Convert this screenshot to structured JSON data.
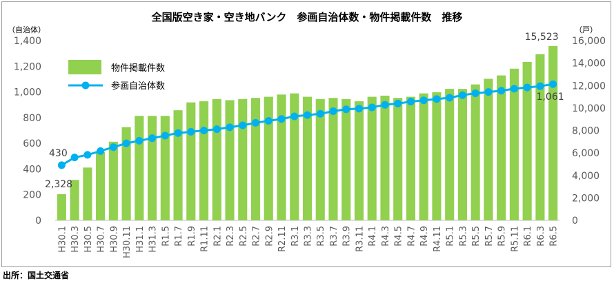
{
  "source": "出所：国土交通省",
  "chart_data": {
    "type": "bar+line",
    "title": "全国版空き家・空き地バンク　参画自治体数・物件掲載件数　推移",
    "left_axis_unit": "（自治体）",
    "right_axis_unit": "（戸）",
    "left_ylim": [
      0,
      1400
    ],
    "left_ticks": [
      0,
      200,
      400,
      600,
      800,
      1000,
      1200,
      1400
    ],
    "right_ylim": [
      0,
      16000
    ],
    "right_ticks": [
      0,
      2000,
      4000,
      6000,
      8000,
      10000,
      12000,
      14000,
      16000
    ],
    "right_tick_labels": [
      "0",
      "2,000",
      "4,000",
      "6,000",
      "8,000",
      "10,000",
      "12,000",
      "14,000",
      "16,000"
    ],
    "grid": false,
    "legend_position": "top-left",
    "categories": [
      "H30.1",
      "H30.3",
      "H30.5",
      "H30.7",
      "H30.9",
      "H30.11",
      "H31.1",
      "H31.3",
      "R1.5",
      "R1.7",
      "R1.9",
      "R1.11",
      "R2.1",
      "R2.3",
      "R2.5",
      "R2.7",
      "R2.9",
      "R2.11",
      "R3.1",
      "R3.3",
      "R3.5",
      "R3.7",
      "R3.9",
      "R3.11",
      "R4.1",
      "R4.3",
      "R4.5",
      "R4.7",
      "R4.9",
      "R4.11",
      "R5.1",
      "R5.3",
      "R5.5",
      "R5.7",
      "R5.9",
      "R5.11",
      "R6.1",
      "R6.3",
      "R6.5"
    ],
    "series": [
      {
        "name": "物件掲載件数",
        "type": "bar",
        "axis": "right",
        "color": "#92d050",
        "values": [
          2328,
          3600,
          4700,
          6100,
          7000,
          8300,
          9300,
          9300,
          9300,
          9800,
          10500,
          10600,
          10800,
          10700,
          10800,
          10900,
          11000,
          11200,
          11300,
          11000,
          10800,
          10900,
          10800,
          10600,
          11000,
          11100,
          10900,
          11000,
          11300,
          11400,
          11700,
          11700,
          12100,
          12600,
          12900,
          13500,
          14100,
          14800,
          15523
        ]
      },
      {
        "name": "参画自治体数",
        "type": "line",
        "axis": "left",
        "color": "#00b0f0",
        "values": [
          430,
          490,
          510,
          540,
          570,
          600,
          620,
          640,
          660,
          680,
          690,
          700,
          710,
          725,
          740,
          760,
          775,
          790,
          810,
          820,
          830,
          850,
          865,
          870,
          880,
          900,
          910,
          925,
          935,
          945,
          955,
          975,
          990,
          1000,
          1010,
          1025,
          1035,
          1045,
          1061
        ]
      }
    ],
    "annotations": {
      "line_first": "430",
      "bar_first": "2,328",
      "bar_last": "15,523",
      "line_last": "1,061"
    }
  }
}
